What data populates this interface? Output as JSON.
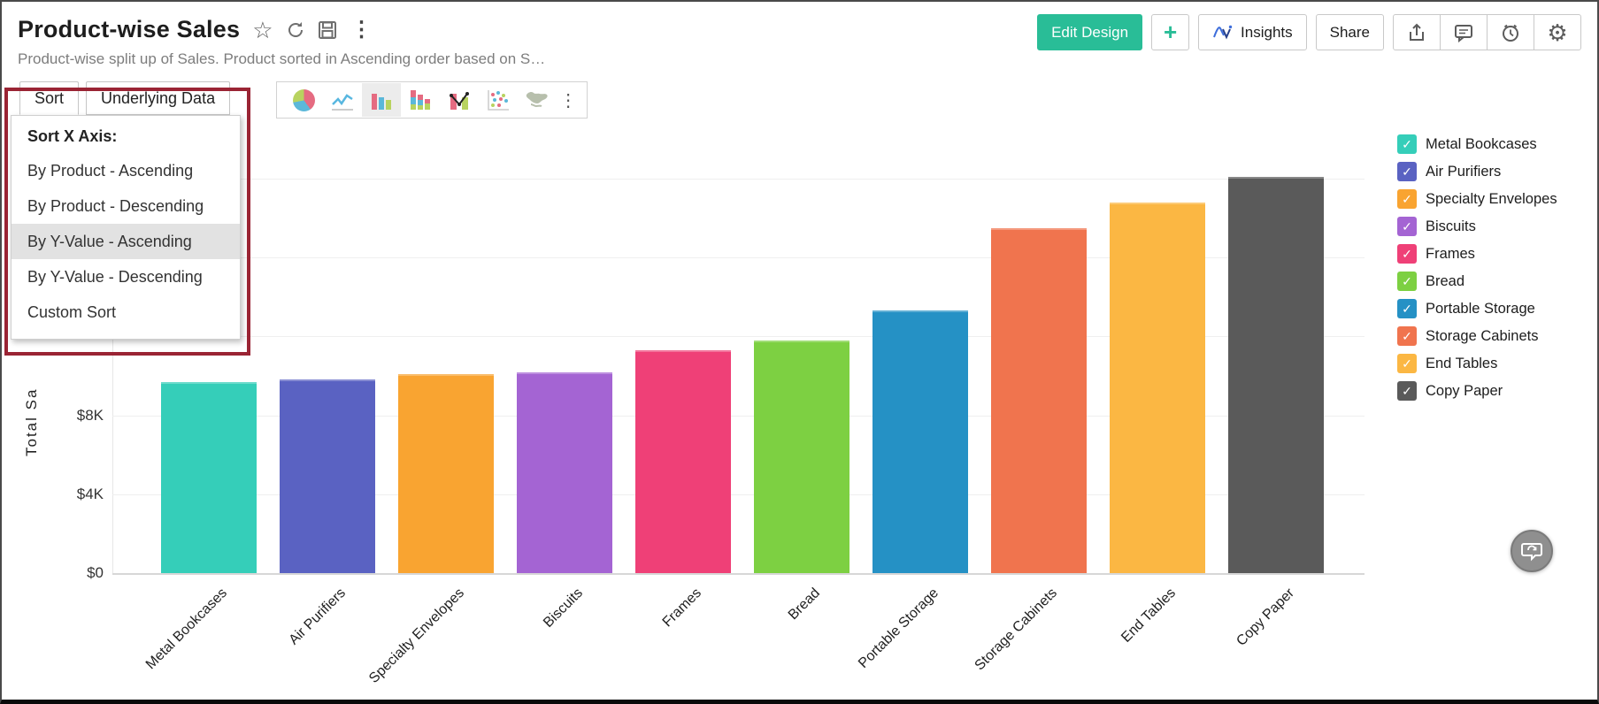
{
  "header": {
    "title": "Product-wise Sales",
    "subtitle": "Product-wise split up of Sales. Product sorted in Ascending order based on S…",
    "actions": {
      "edit_design": "Edit Design",
      "add": "+",
      "insights": "Insights",
      "share": "Share"
    },
    "title_icons": [
      "star-icon",
      "refresh-icon",
      "save-icon",
      "more-vertical-icon"
    ],
    "action_icons": [
      "export-icon",
      "comment-icon",
      "alert-clock-icon",
      "settings-gear-icon"
    ]
  },
  "toolbar": {
    "tabs": [
      {
        "label": "Sort",
        "active": true
      },
      {
        "label": "Underlying Data",
        "active": false
      }
    ],
    "chart_types": [
      "pie",
      "line",
      "bar",
      "stacked-bar",
      "bar-line",
      "scatter",
      "map"
    ],
    "selected_chart_type": "bar",
    "more_label": "⋮"
  },
  "sort_menu": {
    "header": "Sort X Axis:",
    "items": [
      {
        "label": "By Product - Ascending",
        "selected": false
      },
      {
        "label": "By Product - Descending",
        "selected": false
      },
      {
        "label": "By Y-Value - Ascending",
        "selected": true
      },
      {
        "label": "By Y-Value - Descending",
        "selected": false
      },
      {
        "label": "Custom Sort",
        "selected": false
      }
    ]
  },
  "annotation": {
    "type": "highlight-rectangle",
    "color": "#9a2434"
  },
  "chart_data": {
    "type": "bar",
    "title": "",
    "xlabel": "",
    "ylabel": "Total Sa",
    "categories": [
      "Metal Bookcases",
      "Air Purifiers",
      "Specialty Envelopes",
      "Biscuits",
      "Frames",
      "Bread",
      "Portable Storage",
      "Storage Cabinets",
      "End Tables",
      "Copy Paper"
    ],
    "values": [
      9700,
      9800,
      10100,
      10200,
      11300,
      11800,
      13300,
      17500,
      18800,
      20100
    ],
    "value_unit": "USD",
    "colors": [
      "#35ceb9",
      "#5a62c2",
      "#f9a431",
      "#a464d3",
      "#ef4077",
      "#7dd042",
      "#2591c5",
      "#f0744e",
      "#fbb743",
      "#5a5a5a"
    ],
    "ytick_labels": [
      "$0",
      "$4K",
      "$8K"
    ],
    "ytick_values": [
      0,
      4000,
      8000
    ],
    "ylim": [
      0,
      22000
    ],
    "grid": true,
    "legend_position": "right"
  },
  "legend": {
    "items": [
      {
        "label": "Metal Bookcases",
        "color": "#35ceb9",
        "checked": true
      },
      {
        "label": "Air Purifiers",
        "color": "#5a62c2",
        "checked": true
      },
      {
        "label": "Specialty Envelopes",
        "color": "#f9a431",
        "checked": true
      },
      {
        "label": "Biscuits",
        "color": "#a464d3",
        "checked": true
      },
      {
        "label": "Frames",
        "color": "#ef4077",
        "checked": true
      },
      {
        "label": "Bread",
        "color": "#7dd042",
        "checked": true
      },
      {
        "label": "Portable Storage",
        "color": "#2591c5",
        "checked": true
      },
      {
        "label": "Storage Cabinets",
        "color": "#f0744e",
        "checked": true
      },
      {
        "label": "End Tables",
        "color": "#fbb743",
        "checked": true
      },
      {
        "label": "Copy Paper",
        "color": "#5a5a5a",
        "checked": true
      }
    ],
    "check_glyph": "✓"
  }
}
